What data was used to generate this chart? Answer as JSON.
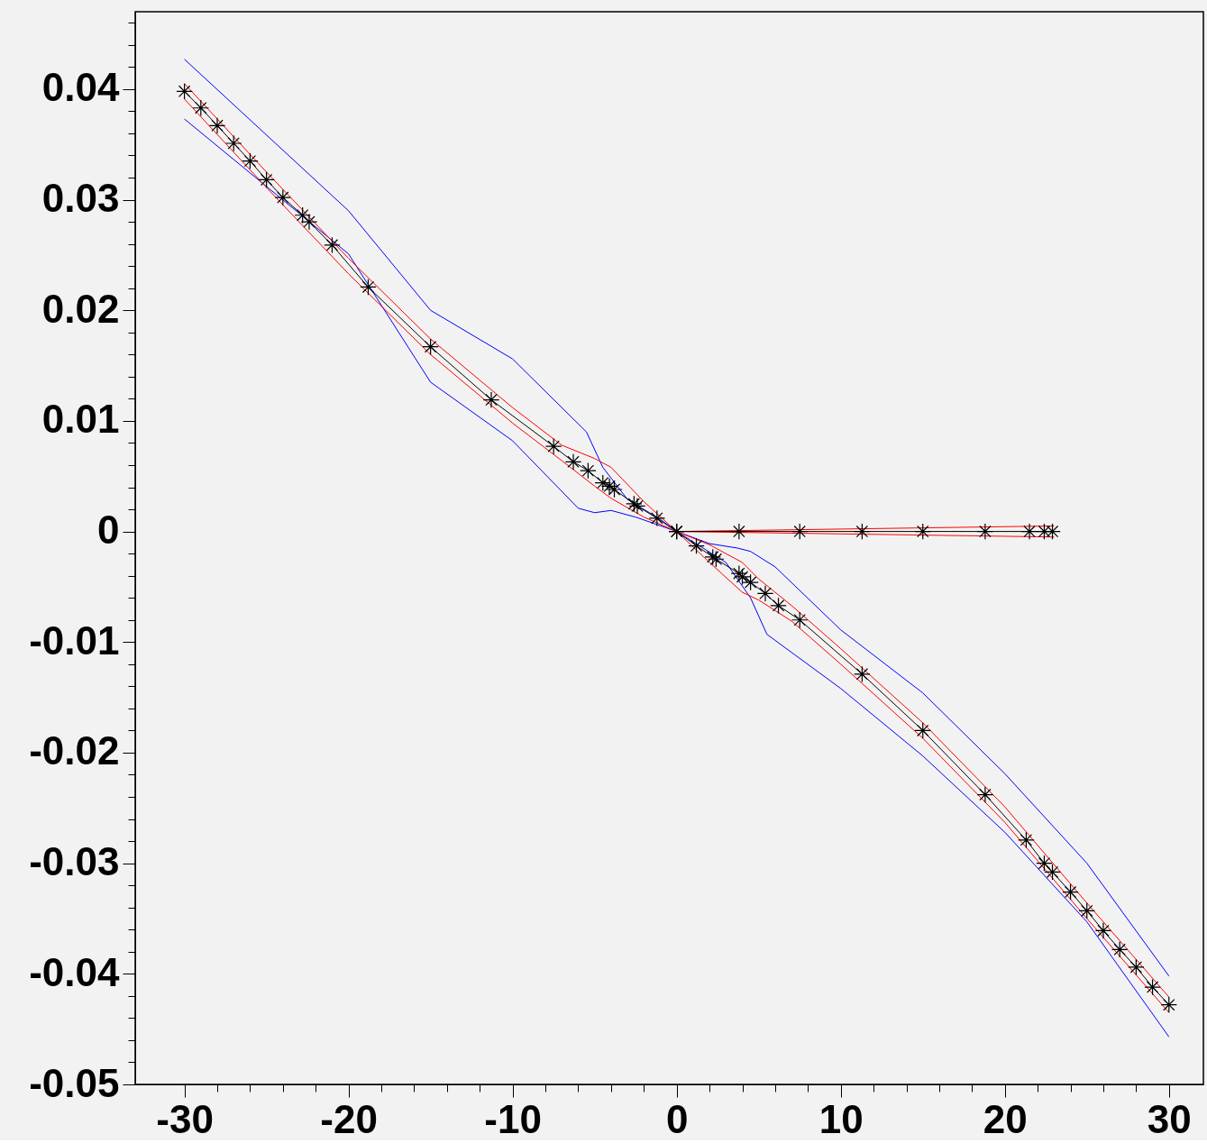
{
  "chart_data": {
    "type": "line",
    "xlim": [
      -33,
      32.1
    ],
    "ylim": [
      -0.05,
      0.047
    ],
    "xticks": [
      -30,
      {
        "value": -28,
        "label": null
      },
      {
        "value": -26,
        "label": null
      },
      {
        "value": -24,
        "label": null
      },
      {
        "value": -22,
        "label": null
      },
      -20,
      {
        "value": -18,
        "label": null
      },
      {
        "value": -16,
        "label": null
      },
      {
        "value": -14,
        "label": null
      },
      {
        "value": -12,
        "label": null
      },
      -10,
      {
        "value": -8,
        "label": null
      },
      {
        "value": -6,
        "label": null
      },
      {
        "value": -4,
        "label": null
      },
      {
        "value": -2,
        "label": null
      },
      0,
      {
        "value": 2,
        "label": null
      },
      {
        "value": 4,
        "label": null
      },
      {
        "value": 6,
        "label": null
      },
      {
        "value": 8,
        "label": null
      },
      10,
      {
        "value": 12,
        "label": null
      },
      {
        "value": 14,
        "label": null
      },
      {
        "value": 16,
        "label": null
      },
      {
        "value": 18,
        "label": null
      },
      20,
      {
        "value": 22,
        "label": null
      },
      {
        "value": 24,
        "label": null
      },
      {
        "value": 26,
        "label": null
      },
      {
        "value": 28,
        "label": null
      },
      30
    ],
    "yticks": [
      -0.05,
      {
        "value": -0.048,
        "label": null
      },
      {
        "value": -0.046,
        "label": null
      },
      {
        "value": -0.044,
        "label": null
      },
      {
        "value": -0.042,
        "label": null
      },
      -0.04,
      {
        "value": -0.038,
        "label": null
      },
      {
        "value": -0.036,
        "label": null
      },
      {
        "value": -0.034,
        "label": null
      },
      {
        "value": -0.032,
        "label": null
      },
      -0.03,
      {
        "value": -0.028,
        "label": null
      },
      {
        "value": -0.026,
        "label": null
      },
      {
        "value": -0.024,
        "label": null
      },
      {
        "value": -0.022,
        "label": null
      },
      -0.02,
      {
        "value": -0.018,
        "label": null
      },
      {
        "value": -0.016,
        "label": null
      },
      {
        "value": -0.014,
        "label": null
      },
      {
        "value": -0.012,
        "label": null
      },
      -0.01,
      {
        "value": -0.008,
        "label": null
      },
      {
        "value": -0.006,
        "label": null
      },
      {
        "value": -0.004,
        "label": null
      },
      {
        "value": -0.002,
        "label": null
      },
      0,
      {
        "value": 0.002,
        "label": null
      },
      {
        "value": 0.004,
        "label": null
      },
      {
        "value": 0.006,
        "label": null
      },
      {
        "value": 0.008,
        "label": null
      },
      0.01,
      {
        "value": 0.012,
        "label": null
      },
      {
        "value": 0.014,
        "label": null
      },
      {
        "value": 0.016,
        "label": null
      },
      {
        "value": 0.018,
        "label": null
      },
      0.02,
      {
        "value": 0.022,
        "label": null
      },
      {
        "value": 0.024,
        "label": null
      },
      {
        "value": 0.026,
        "label": null
      },
      {
        "value": 0.028,
        "label": null
      },
      0.03,
      {
        "value": 0.032,
        "label": null
      },
      {
        "value": 0.034,
        "label": null
      },
      {
        "value": 0.036,
        "label": null
      },
      {
        "value": 0.038,
        "label": null
      },
      0.04,
      {
        "value": 0.042,
        "label": null
      },
      {
        "value": 0.044,
        "label": null
      },
      {
        "value": 0.046,
        "label": null
      }
    ],
    "grid": false,
    "series": [
      {
        "color": "#0000ff",
        "marker": "none",
        "x": [
          -30,
          -20,
          -15,
          -10,
          -5.5,
          -4.5,
          -3,
          -1,
          0,
          2,
          3.7,
          4.5,
          6,
          10,
          15,
          20,
          25,
          30
        ],
        "values": [
          0.0427,
          0.029,
          0.02,
          0.0156,
          0.009,
          0.0058,
          0.0029,
          0.0011,
          0,
          -0.0011,
          -0.0015,
          -0.0018,
          -0.0032,
          -0.0089,
          -0.0146,
          -0.0219,
          -0.03,
          -0.0402
        ]
      },
      {
        "color": "#0000ff",
        "marker": "none",
        "x": [
          -30,
          -20,
          -15,
          -10,
          -6,
          -5,
          -4,
          -2.5,
          0,
          3,
          4.5,
          5.5,
          10,
          15,
          20,
          25,
          30
        ],
        "values": [
          0.0373,
          0.0251,
          0.0135,
          0.0082,
          0.0021,
          0.0017,
          0.0019,
          0.0013,
          0,
          -0.0028,
          -0.006,
          -0.0093,
          -0.0142,
          -0.0203,
          -0.0272,
          -0.0353,
          -0.0457
        ]
      },
      {
        "color": "#ff0000",
        "marker": "none",
        "x": [
          -30,
          -25,
          -20,
          -15,
          -10,
          -7,
          -5,
          -4,
          -2,
          0,
          2,
          4,
          5,
          7,
          10,
          15,
          20,
          25,
          30
        ],
        "values": [
          0.0405,
          0.0325,
          0.0247,
          0.0174,
          0.0112,
          0.0078,
          0.0066,
          0.0058,
          0.0027,
          0,
          -0.0012,
          -0.0028,
          -0.0043,
          -0.0067,
          -0.0106,
          -0.0173,
          -0.0249,
          -0.0336,
          -0.0421
        ]
      },
      {
        "color": "#ff0000",
        "marker": "none",
        "x": [
          -30,
          -25,
          -20,
          -15,
          -10,
          -7,
          -5,
          -4,
          -2,
          0,
          2,
          4,
          5,
          7,
          10,
          15,
          20,
          25,
          30
        ],
        "values": [
          0.0391,
          0.0311,
          0.0233,
          0.016,
          0.0098,
          0.0064,
          0.0041,
          0.003,
          0.0013,
          0,
          -0.0028,
          -0.0055,
          -0.0062,
          -0.0081,
          -0.012,
          -0.0187,
          -0.0263,
          -0.035,
          -0.0435
        ]
      },
      {
        "color": "#ff0000",
        "marker": "none",
        "x": [
          0,
          23
        ],
        "values": [
          0,
          0.0005
        ]
      },
      {
        "color": "#ff0000",
        "marker": "none",
        "x": [
          0,
          23
        ],
        "values": [
          0,
          -0.0005
        ]
      },
      {
        "color": "#000000",
        "marker": "cross",
        "x": [
          -30,
          -29,
          -28,
          -27,
          -26,
          -25,
          -24,
          -22.8,
          -22.4,
          -21,
          -18.8,
          -15,
          -11.3,
          -7.5,
          -6.3,
          -5.4,
          -4.5,
          -4.1,
          -3.8,
          -2.6,
          -2.4,
          -1.2,
          0,
          1.2,
          2.2,
          2.4,
          3.8,
          4.0,
          4.5,
          5.4,
          6.2,
          7.5,
          11.3,
          15,
          18.8,
          21.3,
          22.4,
          22.9,
          24,
          25,
          26,
          27,
          28,
          29,
          30
        ],
        "values": [
          0.0398,
          0.0383,
          0.0367,
          0.0351,
          0.0335,
          0.0318,
          0.0302,
          0.0286,
          0.028,
          0.0259,
          0.0221,
          0.0167,
          0.0119,
          0.0077,
          0.0063,
          0.0055,
          0.0044,
          0.0041,
          0.0038,
          0.0025,
          0.0023,
          0.0012,
          0,
          -0.0013,
          -0.0023,
          -0.0025,
          -0.0038,
          -0.0041,
          -0.0046,
          -0.0056,
          -0.0067,
          -0.008,
          -0.0129,
          -0.018,
          -0.0238,
          -0.0279,
          -0.03,
          -0.0308,
          -0.0326,
          -0.0343,
          -0.0361,
          -0.0378,
          -0.0394,
          -0.0412,
          -0.0428
        ]
      },
      {
        "color": "#000000",
        "marker": "cross",
        "x": [
          0,
          3.8,
          7.5,
          11.3,
          15,
          18.8,
          21.5,
          22.4,
          22.9
        ],
        "values": [
          0,
          0,
          0,
          0,
          0,
          0,
          0,
          0,
          0
        ]
      }
    ]
  }
}
